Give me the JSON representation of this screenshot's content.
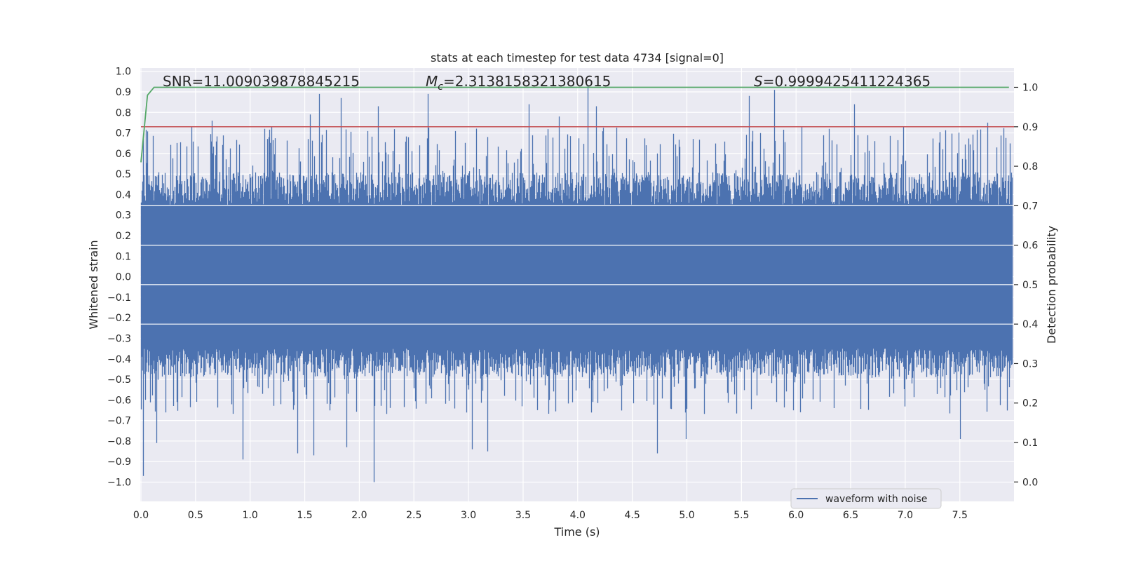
{
  "chart_data": {
    "type": "line",
    "title": "stats at each timestep for test data 4734 [signal=0]",
    "xlabel": "Time (s)",
    "ylabel_left": "Whitened strain",
    "ylabel_right": "Detection probability",
    "xlim": [
      0.0,
      8.0
    ],
    "ylim_left": [
      -1.09,
      1.0
    ],
    "ylim_right": [
      -0.05,
      1.04
    ],
    "x_ticks": [
      0.0,
      0.5,
      1.0,
      1.5,
      2.0,
      2.5,
      3.0,
      3.5,
      4.0,
      4.5,
      5.0,
      5.5,
      6.0,
      6.5,
      7.0,
      7.5
    ],
    "x_tick_labels": [
      "0.0",
      "0.5",
      "1.0",
      "1.5",
      "2.0",
      "2.5",
      "3.0",
      "3.5",
      "4.0",
      "4.5",
      "5.0",
      "5.5",
      "6.0",
      "6.5",
      "7.0",
      "7.5"
    ],
    "y_left_ticks": [
      1.0,
      0.9,
      0.8,
      0.7,
      0.6,
      0.5,
      0.4,
      0.3,
      0.2,
      0.1,
      0.0,
      -0.1,
      -0.2,
      -0.3,
      -0.4,
      -0.5,
      -0.6,
      -0.7,
      -0.8,
      -0.9,
      -1.0
    ],
    "y_left_tick_labels": [
      "1.0",
      "0.9",
      "0.8",
      "0.7",
      "0.6",
      "0.5",
      "0.4",
      "0.3",
      "0.2",
      "0.1",
      "0.0",
      "−0.1",
      "−0.2",
      "−0.3",
      "−0.4",
      "−0.5",
      "−0.6",
      "−0.7",
      "−0.8",
      "−0.9",
      "−1.0"
    ],
    "y_right_ticks": [
      1.0,
      0.9,
      0.8,
      0.7,
      0.6,
      0.5,
      0.4,
      0.3,
      0.2,
      0.1,
      0.0
    ],
    "y_right_tick_labels": [
      "1.0",
      "0.9",
      "0.8",
      "0.7",
      "0.6",
      "0.5",
      "0.4",
      "0.3",
      "0.2",
      "0.1",
      "0.0"
    ],
    "series": [
      {
        "name": "waveform with noise",
        "axis": "left",
        "color": "#4c72b0",
        "style": "dense noisy strain",
        "amplitude_envelope_typical": 0.35,
        "peak_min": -1.0,
        "peak_max": 0.92,
        "peaks": [
          {
            "x": 0.02,
            "y": -0.97
          },
          {
            "x": 0.14,
            "y": -0.81
          },
          {
            "x": 0.33,
            "y": -0.61
          },
          {
            "x": 0.65,
            "y": 0.76
          },
          {
            "x": 0.93,
            "y": -0.89
          },
          {
            "x": 1.13,
            "y": 0.72
          },
          {
            "x": 1.43,
            "y": -0.86
          },
          {
            "x": 1.55,
            "y": 0.79
          },
          {
            "x": 1.58,
            "y": -0.87
          },
          {
            "x": 1.63,
            "y": 0.89
          },
          {
            "x": 1.83,
            "y": 0.87
          },
          {
            "x": 1.88,
            "y": -0.83
          },
          {
            "x": 2.13,
            "y": -1.0
          },
          {
            "x": 2.17,
            "y": 0.83
          },
          {
            "x": 2.63,
            "y": 0.89
          },
          {
            "x": 3.03,
            "y": -0.84
          },
          {
            "x": 3.17,
            "y": -0.85
          },
          {
            "x": 3.55,
            "y": 0.84
          },
          {
            "x": 3.83,
            "y": 0.78
          },
          {
            "x": 4.09,
            "y": 0.93
          },
          {
            "x": 4.17,
            "y": 0.83
          },
          {
            "x": 4.73,
            "y": -0.86
          },
          {
            "x": 4.99,
            "y": -0.79
          },
          {
            "x": 5.57,
            "y": 0.88
          },
          {
            "x": 5.8,
            "y": 0.91
          },
          {
            "x": 6.3,
            "y": 0.72
          },
          {
            "x": 6.53,
            "y": 0.84
          },
          {
            "x": 7.5,
            "y": -0.79
          },
          {
            "x": 7.75,
            "y": 0.75
          }
        ]
      },
      {
        "name": "detection probability",
        "axis": "right",
        "color": "#55a868",
        "x": [
          0.0,
          0.06,
          0.12,
          7.95
        ],
        "y": [
          0.81,
          0.98,
          1.0,
          1.0
        ]
      },
      {
        "name": "threshold",
        "axis": "right",
        "color": "#c44e52",
        "x": [
          0.0,
          8.0
        ],
        "y": [
          0.9,
          0.9
        ]
      }
    ],
    "annotations": {
      "snr": "SNR=11.009039878845215",
      "mc_symbol": "M",
      "mc_sub": "c",
      "mc_value": "=2.3138158321380615",
      "s_symbol": "S",
      "s_value": "=0.9999425411224365"
    },
    "legend": {
      "entries": [
        "waveform with noise"
      ],
      "placement": "lower-right"
    },
    "grid": true,
    "colors": {
      "background": "#eaeaf2",
      "grid": "#ffffff",
      "text": "#262626"
    }
  }
}
